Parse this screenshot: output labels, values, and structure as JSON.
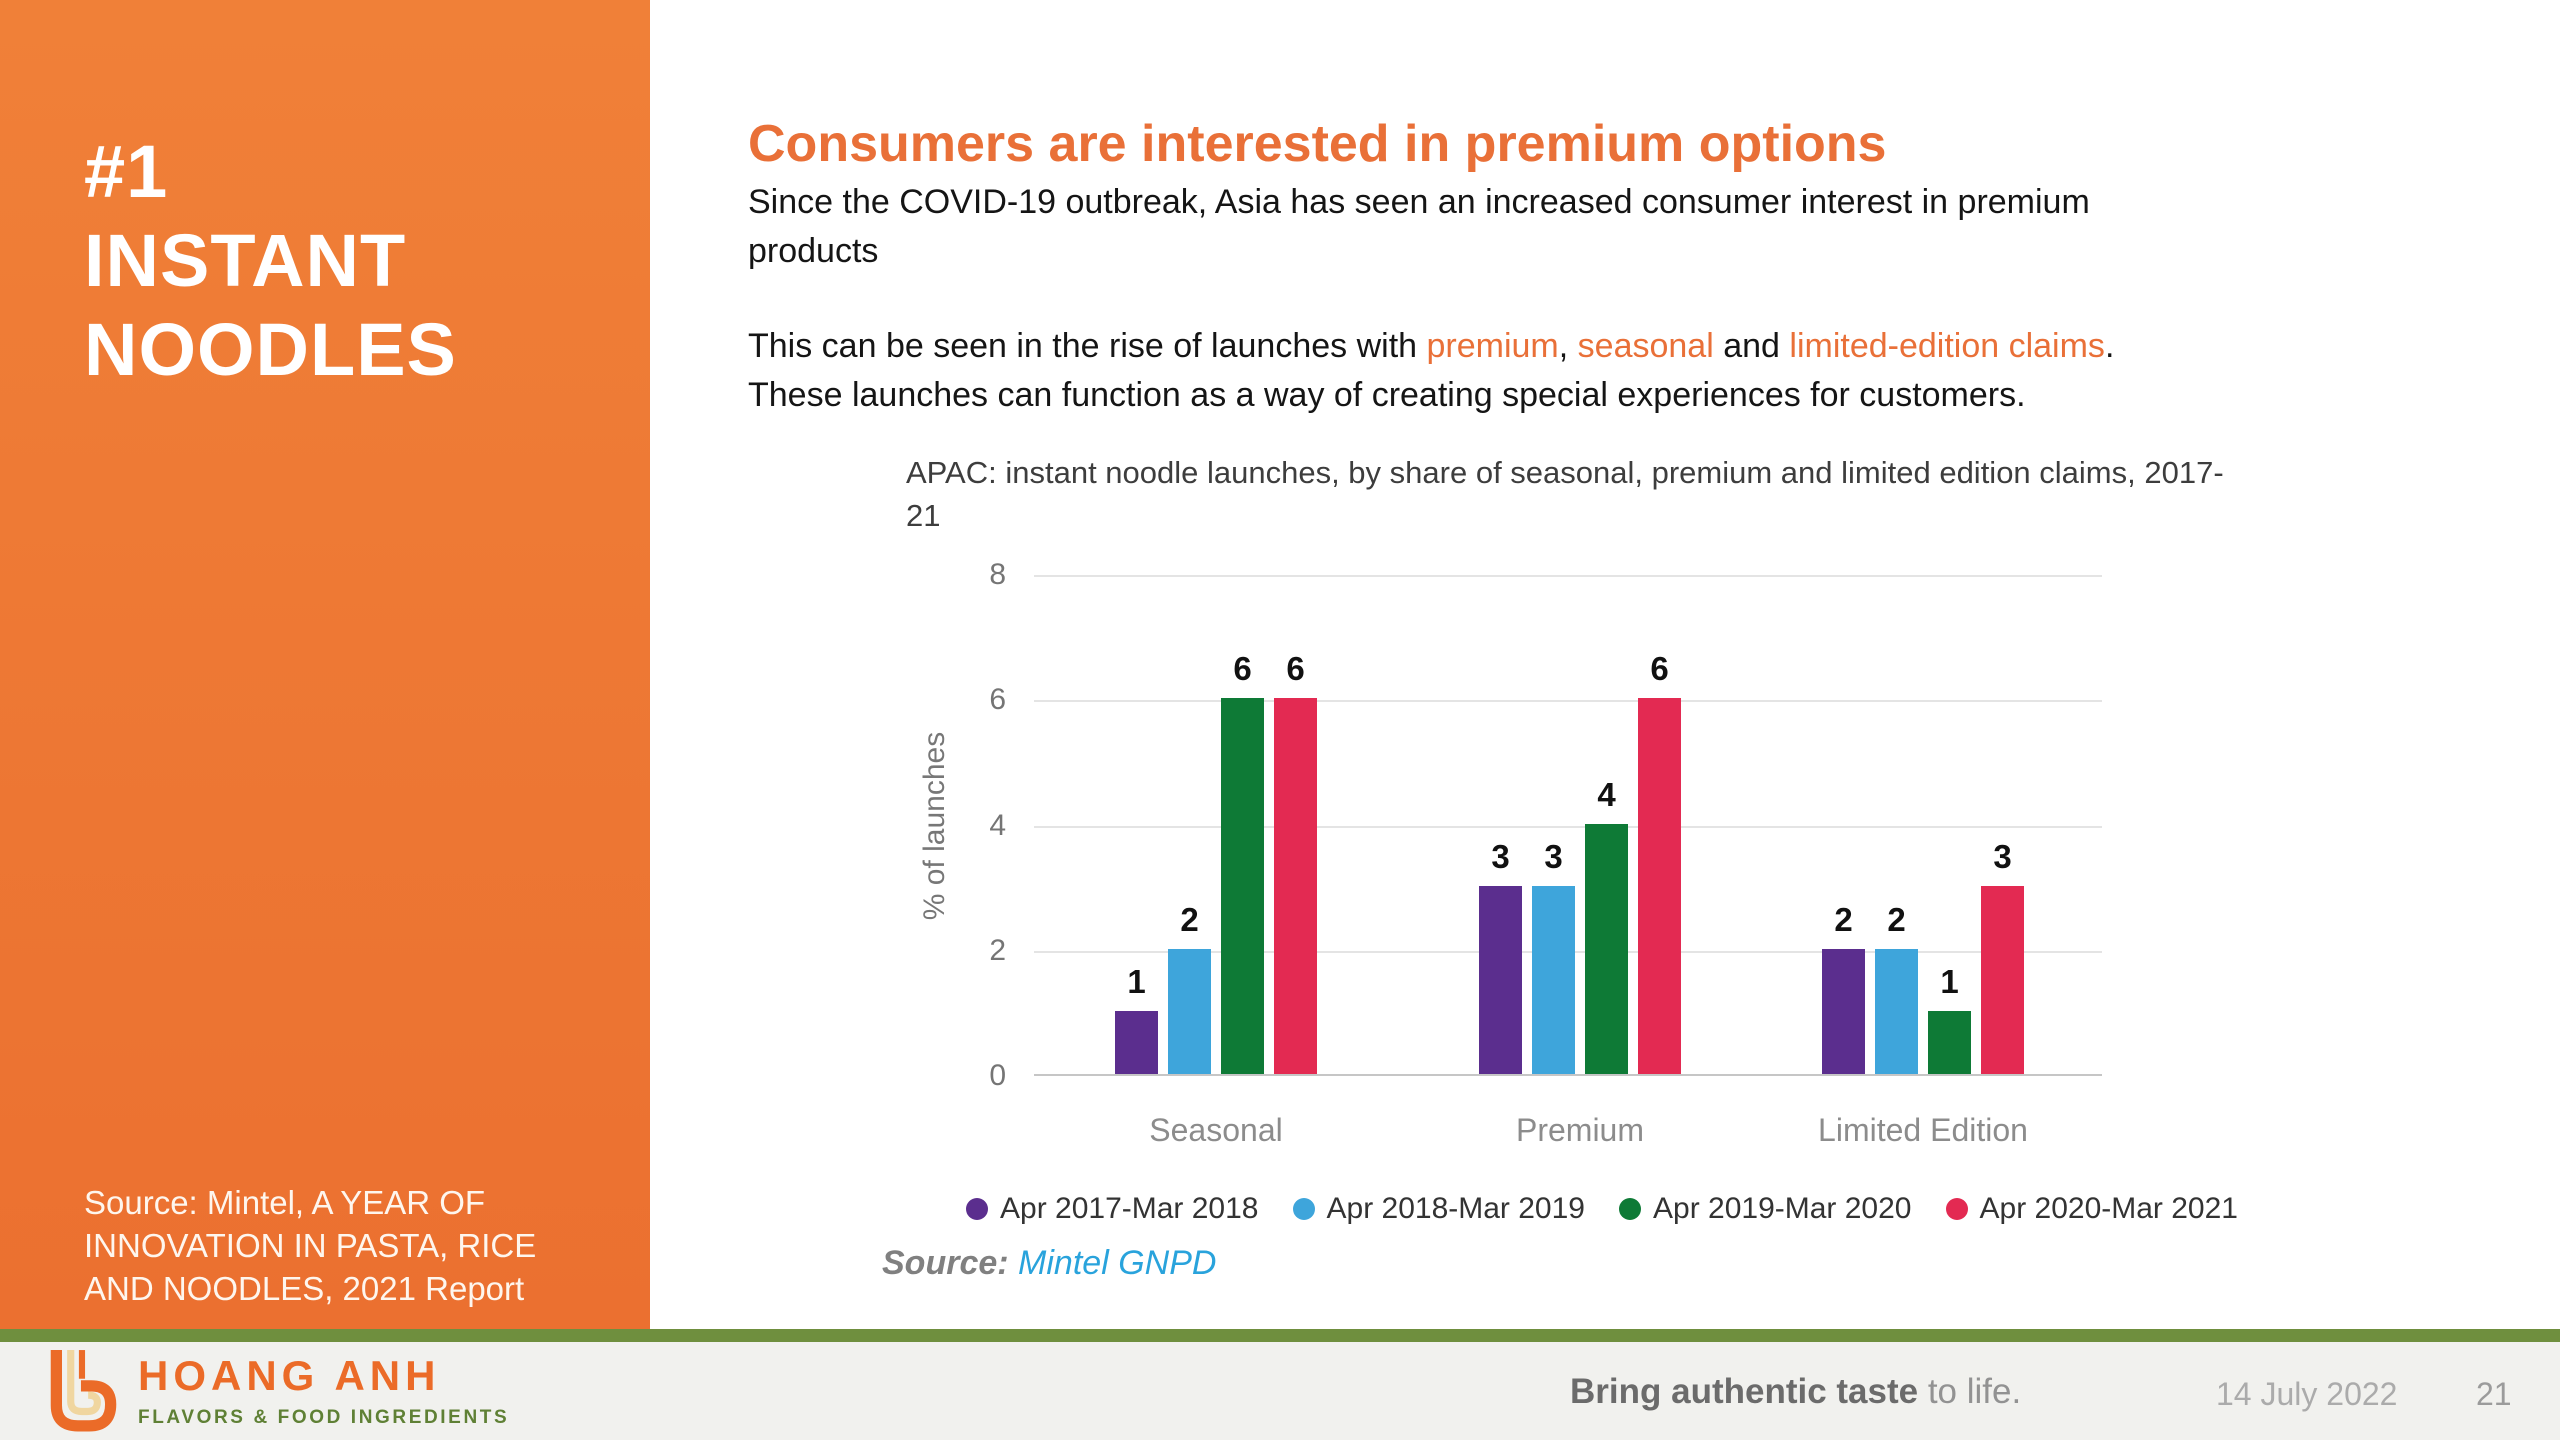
{
  "sidebar": {
    "title": "#1\nINSTANT\nNOODLES",
    "source": "Source: Mintel, A YEAR OF\nINNOVATION IN PASTA, RICE\nAND NOODLES, 2021 Report"
  },
  "content": {
    "heading": "Consumers are interested in premium options",
    "paragraph1": "Since the COVID-19 outbreak, Asia has seen an increased consumer interest in premium\nproducts",
    "paragraph2": {
      "prefix": "This can be seen in the rise of launches with ",
      "hl1": "premium",
      "sep1": ", ",
      "hl2": "seasonal",
      "sep2": " and ",
      "hl3": "limited-edition claims",
      "suffix": ".\nThese launches can function as a way of creating special experiences for customers."
    }
  },
  "chart_data": {
    "type": "bar",
    "title": "APAC: instant noodle launches, by share of seasonal, premium and limited edition claims, 2017-\n21",
    "categories": [
      "Seasonal",
      "Premium",
      "Limited Edition"
    ],
    "series": [
      {
        "name": "Apr 2017-Mar 2018",
        "color": "#5B2E8E",
        "values": [
          1,
          3,
          2
        ]
      },
      {
        "name": "Apr 2018-Mar 2019",
        "color": "#3EA5DB",
        "values": [
          2,
          3,
          2
        ]
      },
      {
        "name": "Apr 2019-Mar 2020",
        "color": "#0E7A36",
        "values": [
          6,
          4,
          1
        ]
      },
      {
        "name": "Apr 2020-Mar 2021",
        "color": "#E32A52",
        "values": [
          6,
          6,
          3
        ]
      }
    ],
    "xlabel": "",
    "ylabel": "% of launches",
    "ylim": [
      0,
      8
    ],
    "yticks": [
      0,
      2,
      4,
      6,
      8
    ],
    "grid": true,
    "legend_position": "bottom",
    "source_label": "Source:",
    "source_value": "Mintel GNPD"
  },
  "footer": {
    "logo_title": "HOANG ANH",
    "logo_tagline": "FLAVORS & FOOD INGREDIENTS",
    "slogan_bold": "Bring authentic taste",
    "slogan_rest": " to life.",
    "date": "14 July 2022",
    "page": "21"
  },
  "colors": {
    "accent-orange": "#E97038",
    "sidebar-top": "#F08038",
    "sidebar-bottom": "#EB7030",
    "footer-green": "#6F8F3E",
    "footer-bg": "#F1F1EE",
    "logo-orange": "#EB6B28",
    "logo-cream": "#F0D6A0",
    "logo-green": "#5F8035",
    "source-blue": "#29A3DC"
  }
}
